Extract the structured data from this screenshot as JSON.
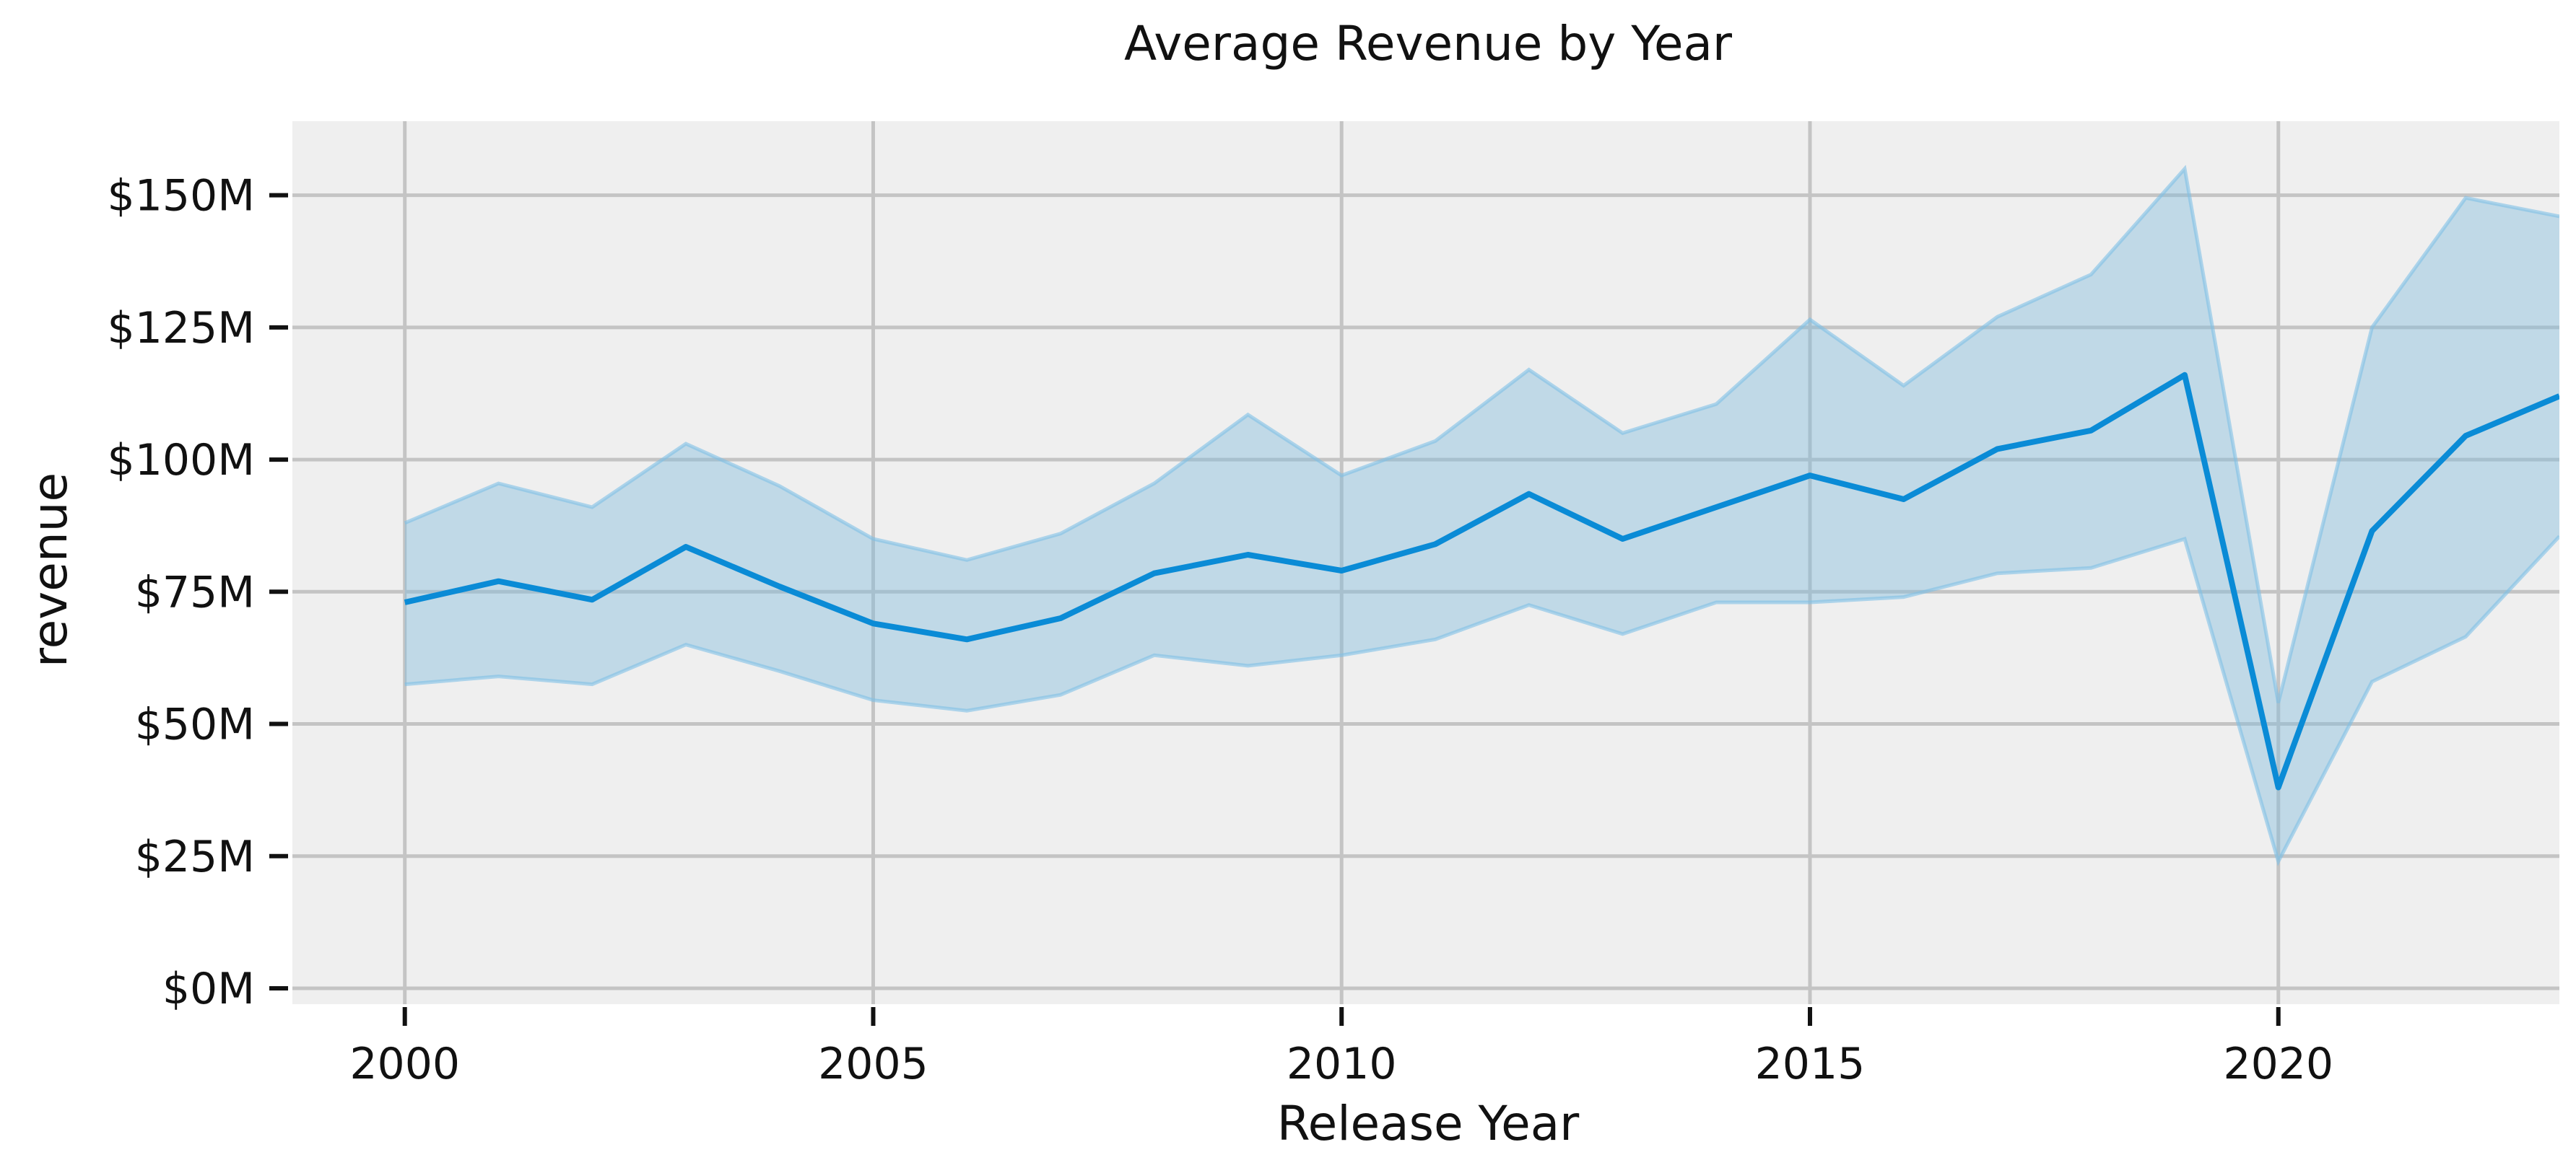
{
  "chart_data": {
    "type": "line",
    "title": "Average Revenue by Year",
    "xlabel": "Release Year",
    "ylabel": "revenue",
    "xlim": [
      1998.8,
      2023
    ],
    "ylim": [
      -3,
      164
    ],
    "x_ticks": [
      2000,
      2005,
      2010,
      2015,
      2020
    ],
    "x_tick_labels": [
      "2000",
      "2005",
      "2010",
      "2015",
      "2020"
    ],
    "y_ticks": [
      0,
      25,
      50,
      75,
      100,
      125,
      150
    ],
    "y_tick_labels": [
      "$0M",
      "$25M",
      "$50M",
      "$75M",
      "$100M",
      "$125M",
      "$150M"
    ],
    "grid": true,
    "colors": {
      "line": "#0a8bd6",
      "band_fill": "#7fb9db",
      "band_edge": "#7fc0e6",
      "plot_background": "#efefef",
      "grid": "#c4c4c4"
    },
    "series": [
      {
        "x": [
          2000,
          2001,
          2002,
          2003,
          2004,
          2005,
          2006,
          2007,
          2008,
          2009,
          2010,
          2011,
          2012,
          2013,
          2014,
          2015,
          2016,
          2017,
          2018,
          2019,
          2020,
          2021,
          2022,
          2023
        ],
        "y": [
          73,
          77,
          73.5,
          83.5,
          76,
          69,
          66,
          70,
          78.5,
          82,
          79,
          84,
          93.5,
          85,
          91,
          97,
          92.5,
          102,
          105.5,
          116,
          38,
          86.5,
          104.5,
          112
        ],
        "ci_low": [
          57.5,
          59,
          57.5,
          65,
          60,
          54.5,
          52.5,
          55.5,
          63,
          61,
          63,
          66,
          72.5,
          67,
          73,
          73,
          74,
          78.5,
          79.5,
          85,
          24,
          58,
          66.5,
          85.5
        ],
        "ci_high": [
          88,
          95.5,
          91,
          103,
          95,
          85,
          81,
          86,
          95.5,
          108.5,
          97,
          103.5,
          117,
          105,
          110.5,
          126.5,
          114,
          127,
          135,
          155,
          54,
          125,
          149.5,
          146
        ]
      }
    ]
  }
}
